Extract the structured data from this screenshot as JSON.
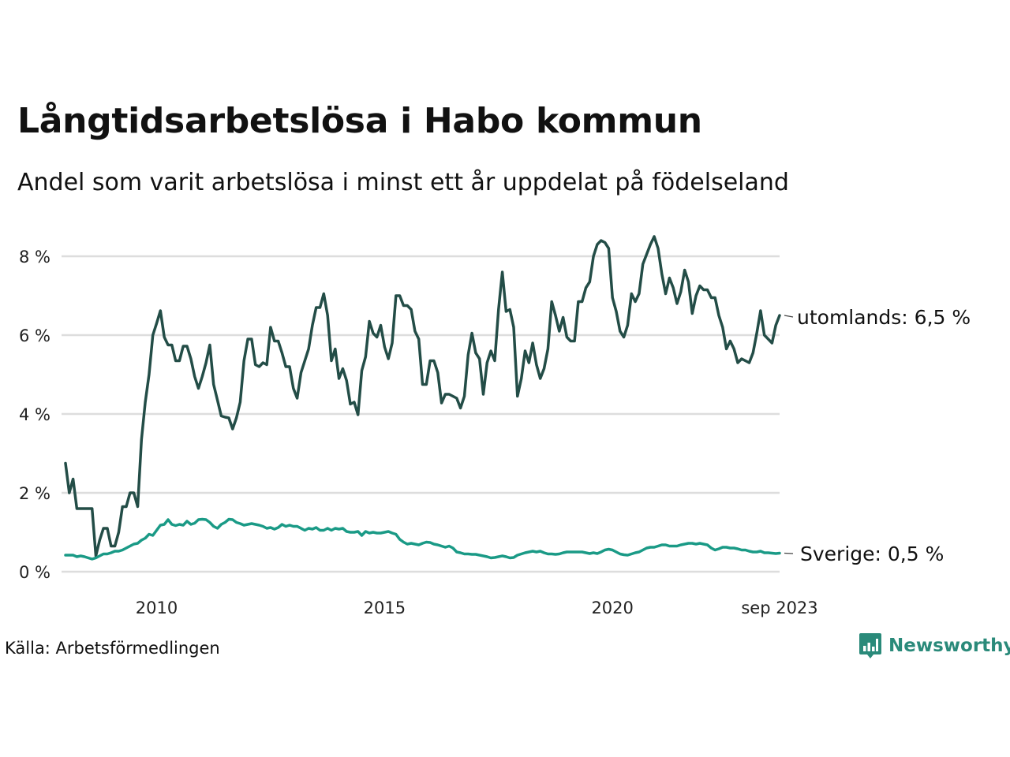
{
  "title": "Långtidsarbetslösa i Habo kommun",
  "subtitle": "Andel som varit arbetslösa i minst ett år uppdelat på födelseland",
  "source": "Källa: Arbetsförmedlingen",
  "brand": "Newsworthy",
  "colors": {
    "utomlands": "#234d47",
    "sverige": "#1a9a86",
    "grid": "#dddddd",
    "brand": "#2a8a7a"
  },
  "chart_data": {
    "type": "line",
    "title": "Långtidsarbetslösa i Habo kommun",
    "xlabel": "",
    "ylabel": "",
    "x_start": "2008-01",
    "x_end": "2023-09",
    "xlim": [
      2008.0,
      2023.667
    ],
    "ylim": [
      0,
      8.6
    ],
    "yticks": [
      {
        "value": 0,
        "label": "0 %"
      },
      {
        "value": 2,
        "label": "2 %"
      },
      {
        "value": 4,
        "label": "4 %"
      },
      {
        "value": 6,
        "label": "6 %"
      },
      {
        "value": 8,
        "label": "8 %"
      }
    ],
    "xticks": [
      {
        "value": 2010.0,
        "label": "2010"
      },
      {
        "value": 2015.0,
        "label": "2015"
      },
      {
        "value": 2020.0,
        "label": "2020"
      },
      {
        "value": 2023.667,
        "label": "sep 2023"
      }
    ],
    "series": [
      {
        "name": "utomlands",
        "label": "utomlands: 6,5 %",
        "color": "#234d47",
        "values": [
          2.75,
          2.0,
          2.35,
          1.6,
          1.6,
          1.6,
          1.6,
          1.6,
          0.4,
          0.8,
          1.1,
          1.1,
          0.65,
          0.65,
          1.0,
          1.65,
          1.65,
          2.0,
          2.0,
          1.65,
          3.35,
          4.3,
          5.0,
          6.0,
          6.3,
          6.62,
          5.95,
          5.75,
          5.75,
          5.35,
          5.35,
          5.72,
          5.72,
          5.4,
          4.95,
          4.65,
          4.95,
          5.3,
          5.75,
          4.75,
          4.35,
          3.95,
          3.92,
          3.9,
          3.62,
          3.9,
          4.3,
          5.35,
          5.9,
          5.9,
          5.25,
          5.2,
          5.3,
          5.25,
          6.2,
          5.85,
          5.85,
          5.55,
          5.2,
          5.2,
          4.65,
          4.4,
          5.05,
          5.35,
          5.65,
          6.25,
          6.7,
          6.7,
          7.05,
          6.5,
          5.35,
          5.65,
          4.9,
          5.15,
          4.85,
          4.25,
          4.3,
          3.98,
          5.1,
          5.45,
          6.35,
          6.05,
          5.95,
          6.25,
          5.7,
          5.4,
          5.8,
          7.0,
          7.0,
          6.75,
          6.75,
          6.65,
          6.1,
          5.9,
          4.75,
          4.75,
          5.35,
          5.35,
          5.05,
          4.28,
          4.5,
          4.5,
          4.45,
          4.4,
          4.15,
          4.45,
          5.5,
          6.05,
          5.55,
          5.4,
          4.5,
          5.3,
          5.6,
          5.35,
          6.65,
          7.6,
          6.6,
          6.65,
          6.2,
          4.45,
          4.9,
          5.6,
          5.3,
          5.8,
          5.25,
          4.9,
          5.15,
          5.65,
          6.85,
          6.5,
          6.1,
          6.45,
          5.95,
          5.85,
          5.85,
          6.85,
          6.85,
          7.2,
          7.35,
          8.0,
          8.3,
          8.4,
          8.35,
          8.2,
          6.95,
          6.6,
          6.1,
          5.95,
          6.25,
          7.05,
          6.85,
          7.05,
          7.8,
          8.05,
          8.3,
          8.5,
          8.2,
          7.55,
          7.05,
          7.45,
          7.2,
          6.8,
          7.1,
          7.65,
          7.35,
          6.55,
          7.0,
          7.25,
          7.15,
          7.15,
          6.95,
          6.95,
          6.5,
          6.2,
          5.65,
          5.85,
          5.65,
          5.3,
          5.4,
          5.35,
          5.3,
          5.55,
          6.05,
          6.62,
          6.0,
          5.9,
          5.8,
          6.25,
          6.5
        ]
      },
      {
        "name": "Sverige",
        "label": "Sverige: 0,5 %",
        "color": "#1a9a86",
        "values": [
          0.42,
          0.42,
          0.42,
          0.38,
          0.4,
          0.38,
          0.35,
          0.32,
          0.35,
          0.4,
          0.45,
          0.45,
          0.48,
          0.52,
          0.52,
          0.55,
          0.6,
          0.65,
          0.7,
          0.72,
          0.8,
          0.85,
          0.95,
          0.92,
          1.05,
          1.18,
          1.2,
          1.32,
          1.2,
          1.17,
          1.2,
          1.18,
          1.28,
          1.2,
          1.23,
          1.32,
          1.33,
          1.32,
          1.25,
          1.15,
          1.1,
          1.2,
          1.25,
          1.33,
          1.32,
          1.25,
          1.22,
          1.18,
          1.2,
          1.22,
          1.2,
          1.18,
          1.15,
          1.1,
          1.12,
          1.08,
          1.12,
          1.2,
          1.15,
          1.18,
          1.15,
          1.15,
          1.1,
          1.05,
          1.1,
          1.08,
          1.12,
          1.05,
          1.05,
          1.1,
          1.05,
          1.1,
          1.08,
          1.1,
          1.02,
          1.0,
          1.0,
          1.02,
          0.92,
          1.02,
          0.98,
          1.0,
          0.98,
          0.98,
          1.0,
          1.02,
          0.98,
          0.95,
          0.82,
          0.75,
          0.7,
          0.72,
          0.7,
          0.68,
          0.72,
          0.75,
          0.74,
          0.7,
          0.68,
          0.65,
          0.62,
          0.65,
          0.6,
          0.5,
          0.48,
          0.45,
          0.45,
          0.44,
          0.44,
          0.42,
          0.4,
          0.38,
          0.35,
          0.36,
          0.38,
          0.4,
          0.38,
          0.35,
          0.36,
          0.42,
          0.45,
          0.48,
          0.5,
          0.52,
          0.5,
          0.52,
          0.48,
          0.45,
          0.45,
          0.44,
          0.45,
          0.48,
          0.5,
          0.5,
          0.5,
          0.5,
          0.5,
          0.48,
          0.46,
          0.48,
          0.46,
          0.5,
          0.55,
          0.57,
          0.55,
          0.5,
          0.45,
          0.43,
          0.42,
          0.45,
          0.48,
          0.5,
          0.55,
          0.6,
          0.62,
          0.62,
          0.65,
          0.68,
          0.68,
          0.65,
          0.65,
          0.65,
          0.68,
          0.7,
          0.72,
          0.72,
          0.7,
          0.72,
          0.7,
          0.68,
          0.6,
          0.55,
          0.58,
          0.62,
          0.62,
          0.6,
          0.6,
          0.58,
          0.55,
          0.55,
          0.52,
          0.5,
          0.5,
          0.52,
          0.48,
          0.48,
          0.47,
          0.46,
          0.47
        ]
      }
    ]
  }
}
